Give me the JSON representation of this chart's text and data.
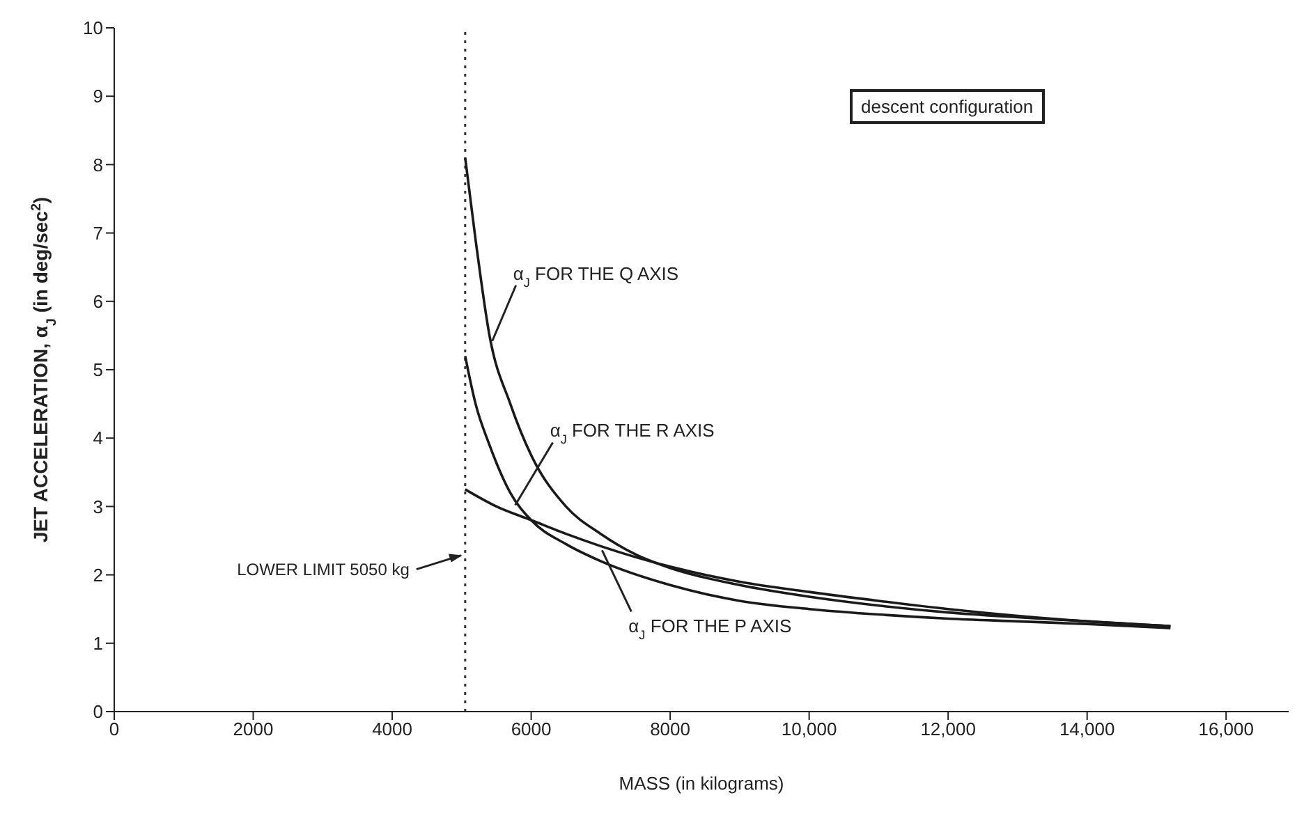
{
  "chart_data": {
    "type": "line",
    "xlabel": "MASS (in kilograms)",
    "ylabel": "JET ACCELERATION, α$_{J}$ (in deg/sec$^{2}$)",
    "xlim": [
      0,
      16900
    ],
    "ylim": [
      0,
      10
    ],
    "xticks": [
      0,
      2000,
      4000,
      6000,
      8000,
      {
        "value": 10000,
        "label": "10,000"
      },
      {
        "value": 12000,
        "label": "12,000"
      },
      {
        "value": 14000,
        "label": "14,000"
      },
      {
        "value": 16000,
        "label": "16,000"
      }
    ],
    "yticks": [
      0,
      1,
      2,
      3,
      4,
      5,
      6,
      7,
      8,
      9,
      10
    ],
    "grid": false,
    "marker": "none",
    "line_style": "solid",
    "series": [
      {
        "color": "#1a1a1a",
        "x": [
          5050,
          5200,
          5400,
          5700,
          6000,
          6500,
          7000,
          7500,
          8000,
          9000,
          10000,
          11000,
          12000,
          13000,
          14000,
          15200
        ],
        "values": [
          8.1,
          6.9,
          5.5,
          4.5,
          3.75,
          3.0,
          2.6,
          2.3,
          2.1,
          1.85,
          1.68,
          1.55,
          1.45,
          1.38,
          1.32,
          1.25
        ]
      },
      {
        "color": "#1a1a1a",
        "x": [
          5050,
          5200,
          5400,
          5700,
          6000,
          6500,
          7000,
          8000,
          9000,
          10000,
          11000,
          12000,
          13000,
          14000,
          15200
        ],
        "values": [
          5.2,
          4.5,
          3.9,
          3.2,
          2.8,
          2.45,
          2.2,
          1.85,
          1.62,
          1.5,
          1.42,
          1.36,
          1.32,
          1.28,
          1.22
        ]
      },
      {
        "color": "#1a1a1a",
        "x": [
          5050,
          5500,
          6000,
          6500,
          7000,
          8000,
          9000,
          10000,
          11000,
          12000,
          13000,
          14000,
          15200
        ],
        "values": [
          3.25,
          3.0,
          2.8,
          2.6,
          2.42,
          2.12,
          1.9,
          1.75,
          1.62,
          1.5,
          1.4,
          1.32,
          1.25
        ]
      }
    ],
    "ref_lines": [
      {
        "axis": "x",
        "value": 5050,
        "label": "LOWER LIMIT 5050 kg",
        "line_style": "dotted",
        "color": "#333333"
      }
    ],
    "annotations": [
      "descent configuration",
      {
        "text": "α$_{J}$ FOR THE Q AXIS",
        "x": 5420,
        "y": 5.4
      },
      {
        "text": "α$_{J}$ FOR THE R AXIS",
        "x": 5750,
        "y": 3.0
      },
      {
        "text": "α$_{J}$ FOR THE P AXIS",
        "x": 7000,
        "y": 2.38
      }
    ]
  }
}
